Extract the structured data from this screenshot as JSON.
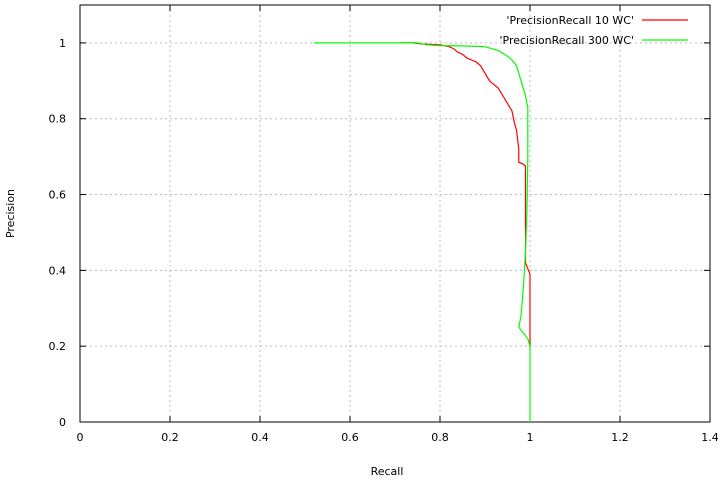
{
  "chart_data": {
    "type": "line",
    "xlabel": "Recall",
    "ylabel": "Precision",
    "xlim": [
      0,
      1.4
    ],
    "ylim": [
      0,
      1.1
    ],
    "x_ticks": [
      0,
      0.2,
      0.4,
      0.6,
      0.8,
      1,
      1.2,
      1.4
    ],
    "x_tick_labels": [
      "0",
      "0.2",
      "0.4",
      "0.6",
      "0.8",
      "1",
      "1.2",
      "1.4"
    ],
    "y_ticks": [
      0,
      0.2,
      0.4,
      0.6,
      0.8,
      1
    ],
    "y_tick_labels": [
      "0",
      "0.2",
      "0.4",
      "0.6",
      "0.8",
      "1"
    ],
    "grid": true,
    "legend_position": "top-right",
    "series": [
      {
        "name": "'PrecisionRecall 10 WC'",
        "color": "#ff0000",
        "points": [
          [
            0.71,
            1.0
          ],
          [
            0.74,
            1.0
          ],
          [
            0.76,
            0.997
          ],
          [
            0.8,
            0.995
          ],
          [
            0.82,
            0.99
          ],
          [
            0.83,
            0.985
          ],
          [
            0.84,
            0.975
          ],
          [
            0.85,
            0.97
          ],
          [
            0.86,
            0.96
          ],
          [
            0.87,
            0.955
          ],
          [
            0.88,
            0.95
          ],
          [
            0.89,
            0.94
          ],
          [
            0.9,
            0.92
          ],
          [
            0.91,
            0.9
          ],
          [
            0.92,
            0.89
          ],
          [
            0.93,
            0.88
          ],
          [
            0.94,
            0.86
          ],
          [
            0.95,
            0.84
          ],
          [
            0.96,
            0.82
          ],
          [
            0.965,
            0.79
          ],
          [
            0.97,
            0.77
          ],
          [
            0.975,
            0.72
          ],
          [
            0.975,
            0.685
          ],
          [
            0.985,
            0.68
          ],
          [
            0.99,
            0.675
          ],
          [
            0.99,
            0.6
          ],
          [
            0.99,
            0.5
          ],
          [
            0.99,
            0.42
          ],
          [
            1.0,
            0.39
          ],
          [
            1.0,
            0.2
          ]
        ]
      },
      {
        "name": "'PrecisionRecall 300 WC'",
        "color": "#00ff00",
        "points": [
          [
            0.52,
            1.0
          ],
          [
            0.75,
            1.0
          ],
          [
            0.77,
            0.995
          ],
          [
            0.8,
            0.993
          ],
          [
            0.85,
            0.992
          ],
          [
            0.9,
            0.99
          ],
          [
            0.93,
            0.98
          ],
          [
            0.95,
            0.965
          ],
          [
            0.96,
            0.955
          ],
          [
            0.97,
            0.94
          ],
          [
            0.975,
            0.92
          ],
          [
            0.98,
            0.9
          ],
          [
            0.985,
            0.88
          ],
          [
            0.99,
            0.86
          ],
          [
            0.995,
            0.83
          ],
          [
            0.995,
            0.7
          ],
          [
            0.993,
            0.55
          ],
          [
            0.99,
            0.45
          ],
          [
            0.985,
            0.35
          ],
          [
            0.98,
            0.28
          ],
          [
            0.975,
            0.25
          ],
          [
            0.995,
            0.22
          ],
          [
            1.0,
            0.2
          ],
          [
            1.0,
            0.1
          ],
          [
            1.0,
            0.0
          ]
        ]
      }
    ]
  }
}
